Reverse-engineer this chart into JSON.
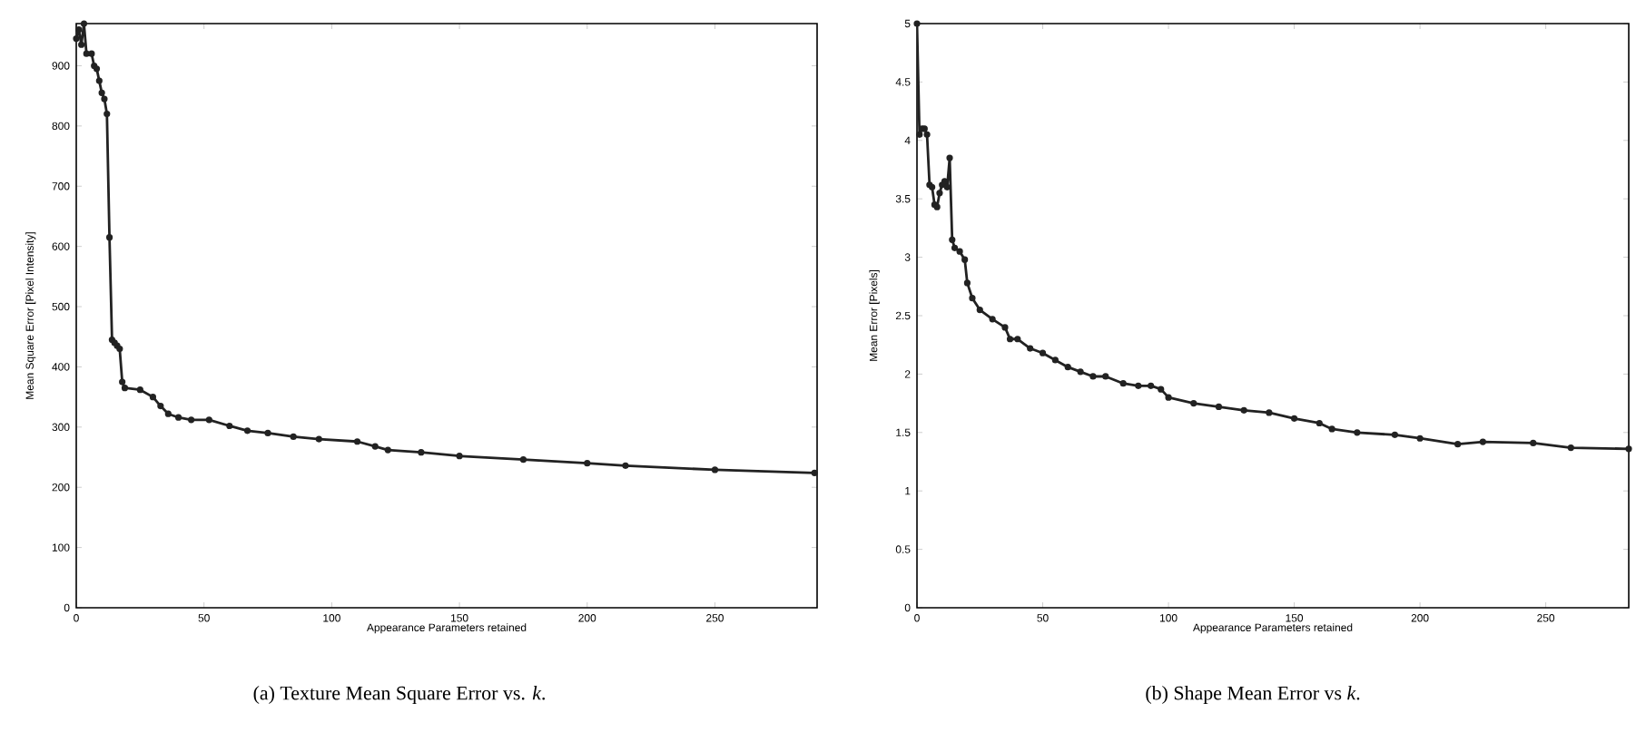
{
  "chart_data": [
    {
      "type": "line",
      "title": "(a) Texture Mean Square Error vs. *k*.",
      "xlabel": "Appearance Parameters retained",
      "ylabel": "Mean Square Error [Pixel Intensity]",
      "marker": "circle",
      "grid": false,
      "xlim": [
        0,
        290
      ],
      "ylim": [
        0,
        970
      ],
      "xticks": [
        0,
        50,
        100,
        150,
        200,
        250
      ],
      "yticks": [
        0,
        100,
        200,
        300,
        400,
        500,
        600,
        700,
        800,
        900
      ],
      "series": [
        {
          "color": "#222222",
          "x": [
            0,
            1,
            2,
            3,
            4,
            6,
            7,
            8,
            9,
            10,
            11,
            12,
            13,
            14,
            15,
            16,
            17,
            18,
            19,
            25,
            30,
            33,
            36,
            40,
            45,
            52,
            60,
            67,
            75,
            85,
            95,
            110,
            117,
            122,
            135,
            150,
            175,
            200,
            215,
            250,
            289
          ],
          "values": [
            945,
            960,
            935,
            970,
            920,
            920,
            900,
            895,
            875,
            855,
            845,
            820,
            615,
            445,
            440,
            435,
            430,
            375,
            365,
            362,
            350,
            335,
            322,
            316,
            312,
            312,
            302,
            294,
            290,
            284,
            280,
            276,
            268,
            262,
            258,
            252,
            246,
            240,
            236,
            229,
            224
          ]
        }
      ]
    },
    {
      "type": "line",
      "title": "(b) Shape Mean Error vs *k*.",
      "xlabel": "Appearance Parameters retained",
      "ylabel": "Mean Error [Pixels]",
      "marker": "circle",
      "grid": false,
      "xlim": [
        0,
        283
      ],
      "ylim": [
        0,
        5
      ],
      "xticks": [
        0,
        50,
        100,
        150,
        200,
        250
      ],
      "yticks": [
        0,
        0.5,
        1,
        1.5,
        2,
        2.5,
        3,
        3.5,
        4,
        4.5,
        5
      ],
      "series": [
        {
          "color": "#222222",
          "x": [
            0,
            1,
            2,
            3,
            4,
            5,
            6,
            7,
            8,
            9,
            10,
            11,
            12,
            13,
            14,
            15,
            17,
            19,
            20,
            22,
            25,
            30,
            35,
            37,
            40,
            45,
            50,
            55,
            60,
            65,
            70,
            75,
            82,
            88,
            93,
            97,
            100,
            110,
            120,
            130,
            140,
            150,
            160,
            165,
            175,
            190,
            200,
            215,
            225,
            245,
            260,
            283
          ],
          "values": [
            5.0,
            4.05,
            4.1,
            4.1,
            4.05,
            3.62,
            3.6,
            3.45,
            3.43,
            3.55,
            3.62,
            3.65,
            3.6,
            3.85,
            3.15,
            3.08,
            3.05,
            2.98,
            2.78,
            2.65,
            2.55,
            2.47,
            2.4,
            2.3,
            2.3,
            2.22,
            2.18,
            2.12,
            2.06,
            2.02,
            1.98,
            1.98,
            1.92,
            1.9,
            1.9,
            1.87,
            1.8,
            1.75,
            1.72,
            1.69,
            1.67,
            1.62,
            1.58,
            1.53,
            1.5,
            1.48,
            1.45,
            1.4,
            1.42,
            1.41,
            1.37,
            1.36
          ]
        }
      ]
    }
  ]
}
